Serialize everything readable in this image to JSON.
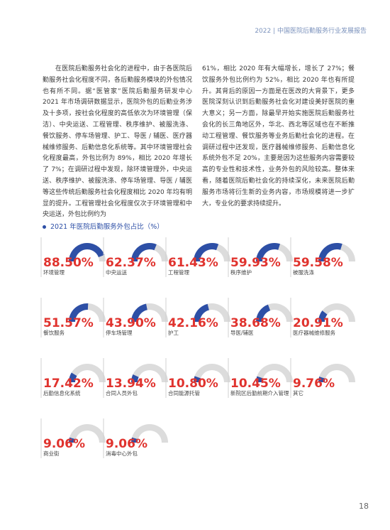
{
  "header": {
    "title": "2022 | 中国医院后勤服务行业发展报告"
  },
  "body": {
    "left": "在医院后勤服务社会化的进程中，由于各医院后勤服务社会化程度不同，各后勤服务模块的外包情况也有所不同。据“医管家”医院后勤服务研发中心 2021 年市场调研数据显示，医院外包的后勤业务涉及十多项，按社会化程度的高低依次为环境管理（保洁）、中央运送、工程管理、秩序维护、被服洗涤、餐饮服务、停车场管理、护工、导医 / 辅医、医疗器械维修服务、后勤信息化系统等。其中环境管理社会化程度最高，外包比例为 89%，相比 2020 年增长了 7%；在调研过程中发现，除环境管理外，中央运送、秩序维护、被服洗涤、停车场管理、导医 / 辅医等这些传统后勤服务社会化程度相比 2020 年均有明显的提升。工程管理社会化程度仅次于环境管理和中央运送，外包比例约为",
    "right": "61%，相比 2020 年有大幅增长，增长了 27%；餐饮服务外包比例约为 52%，相比 2020 年也有所提升。其背后的原因一方面是在医改的大背景下，更多医院深刻认识到后勤服务社会化对建设美好医院的重大意义；另一方面，除最早开始实施医院后勤服务社会化的长三角地区外，华北、西北等区域也在不断推动工程管理、餐饮服务等业务后勤社会化的进程。在调研过程中还发现，医疗器械维修服务、后勤信息化系统外包不足 20%，主要是因为这些服务内容需要较高的专业性和技术性，业务外包的风险较高。整体来看，随着医院后勤社会化的持续深化，未来医院后勤服务市场将衍生新的业务内容，市场规模将进一步扩大，专业化的要求持续提升。"
  },
  "chart_data": {
    "type": "gauge",
    "title": "2021 年医院后勤服务外包占比（%）",
    "categories": [
      "环境管理",
      "中央运送",
      "工程管理",
      "秩序维护",
      "被服洗涤",
      "餐饮服务",
      "停车场管理",
      "护工",
      "导医/辅医",
      "医疗器械维修服务",
      "后勤信息化系统",
      "合同人员外包",
      "合同能源托管",
      "新院区后勤前期介入管理",
      "其它",
      "商业街",
      "消毒中心外包"
    ],
    "values": [
      88.5,
      62.37,
      61.43,
      59.93,
      59.58,
      51.57,
      43.9,
      42.16,
      38.68,
      20.91,
      17.42,
      13.94,
      10.8,
      10.45,
      9.76,
      9.06,
      9.06
    ],
    "value_labels": [
      "88.50%",
      "62.37%",
      "61.43%",
      "59.93%",
      "59.58%",
      "51.57%",
      "43.90%",
      "42.16%",
      "38.68%",
      "20.91%",
      "17.42%",
      "13.94%",
      "10.80%",
      "10.45%",
      "9.76%",
      "9.06%",
      "9.06%"
    ],
    "ylim": [
      0,
      100
    ],
    "color": "#2d4fa6",
    "track_color": "#dcdcdc",
    "label_color": "#e0332e"
  },
  "page_number": "18"
}
